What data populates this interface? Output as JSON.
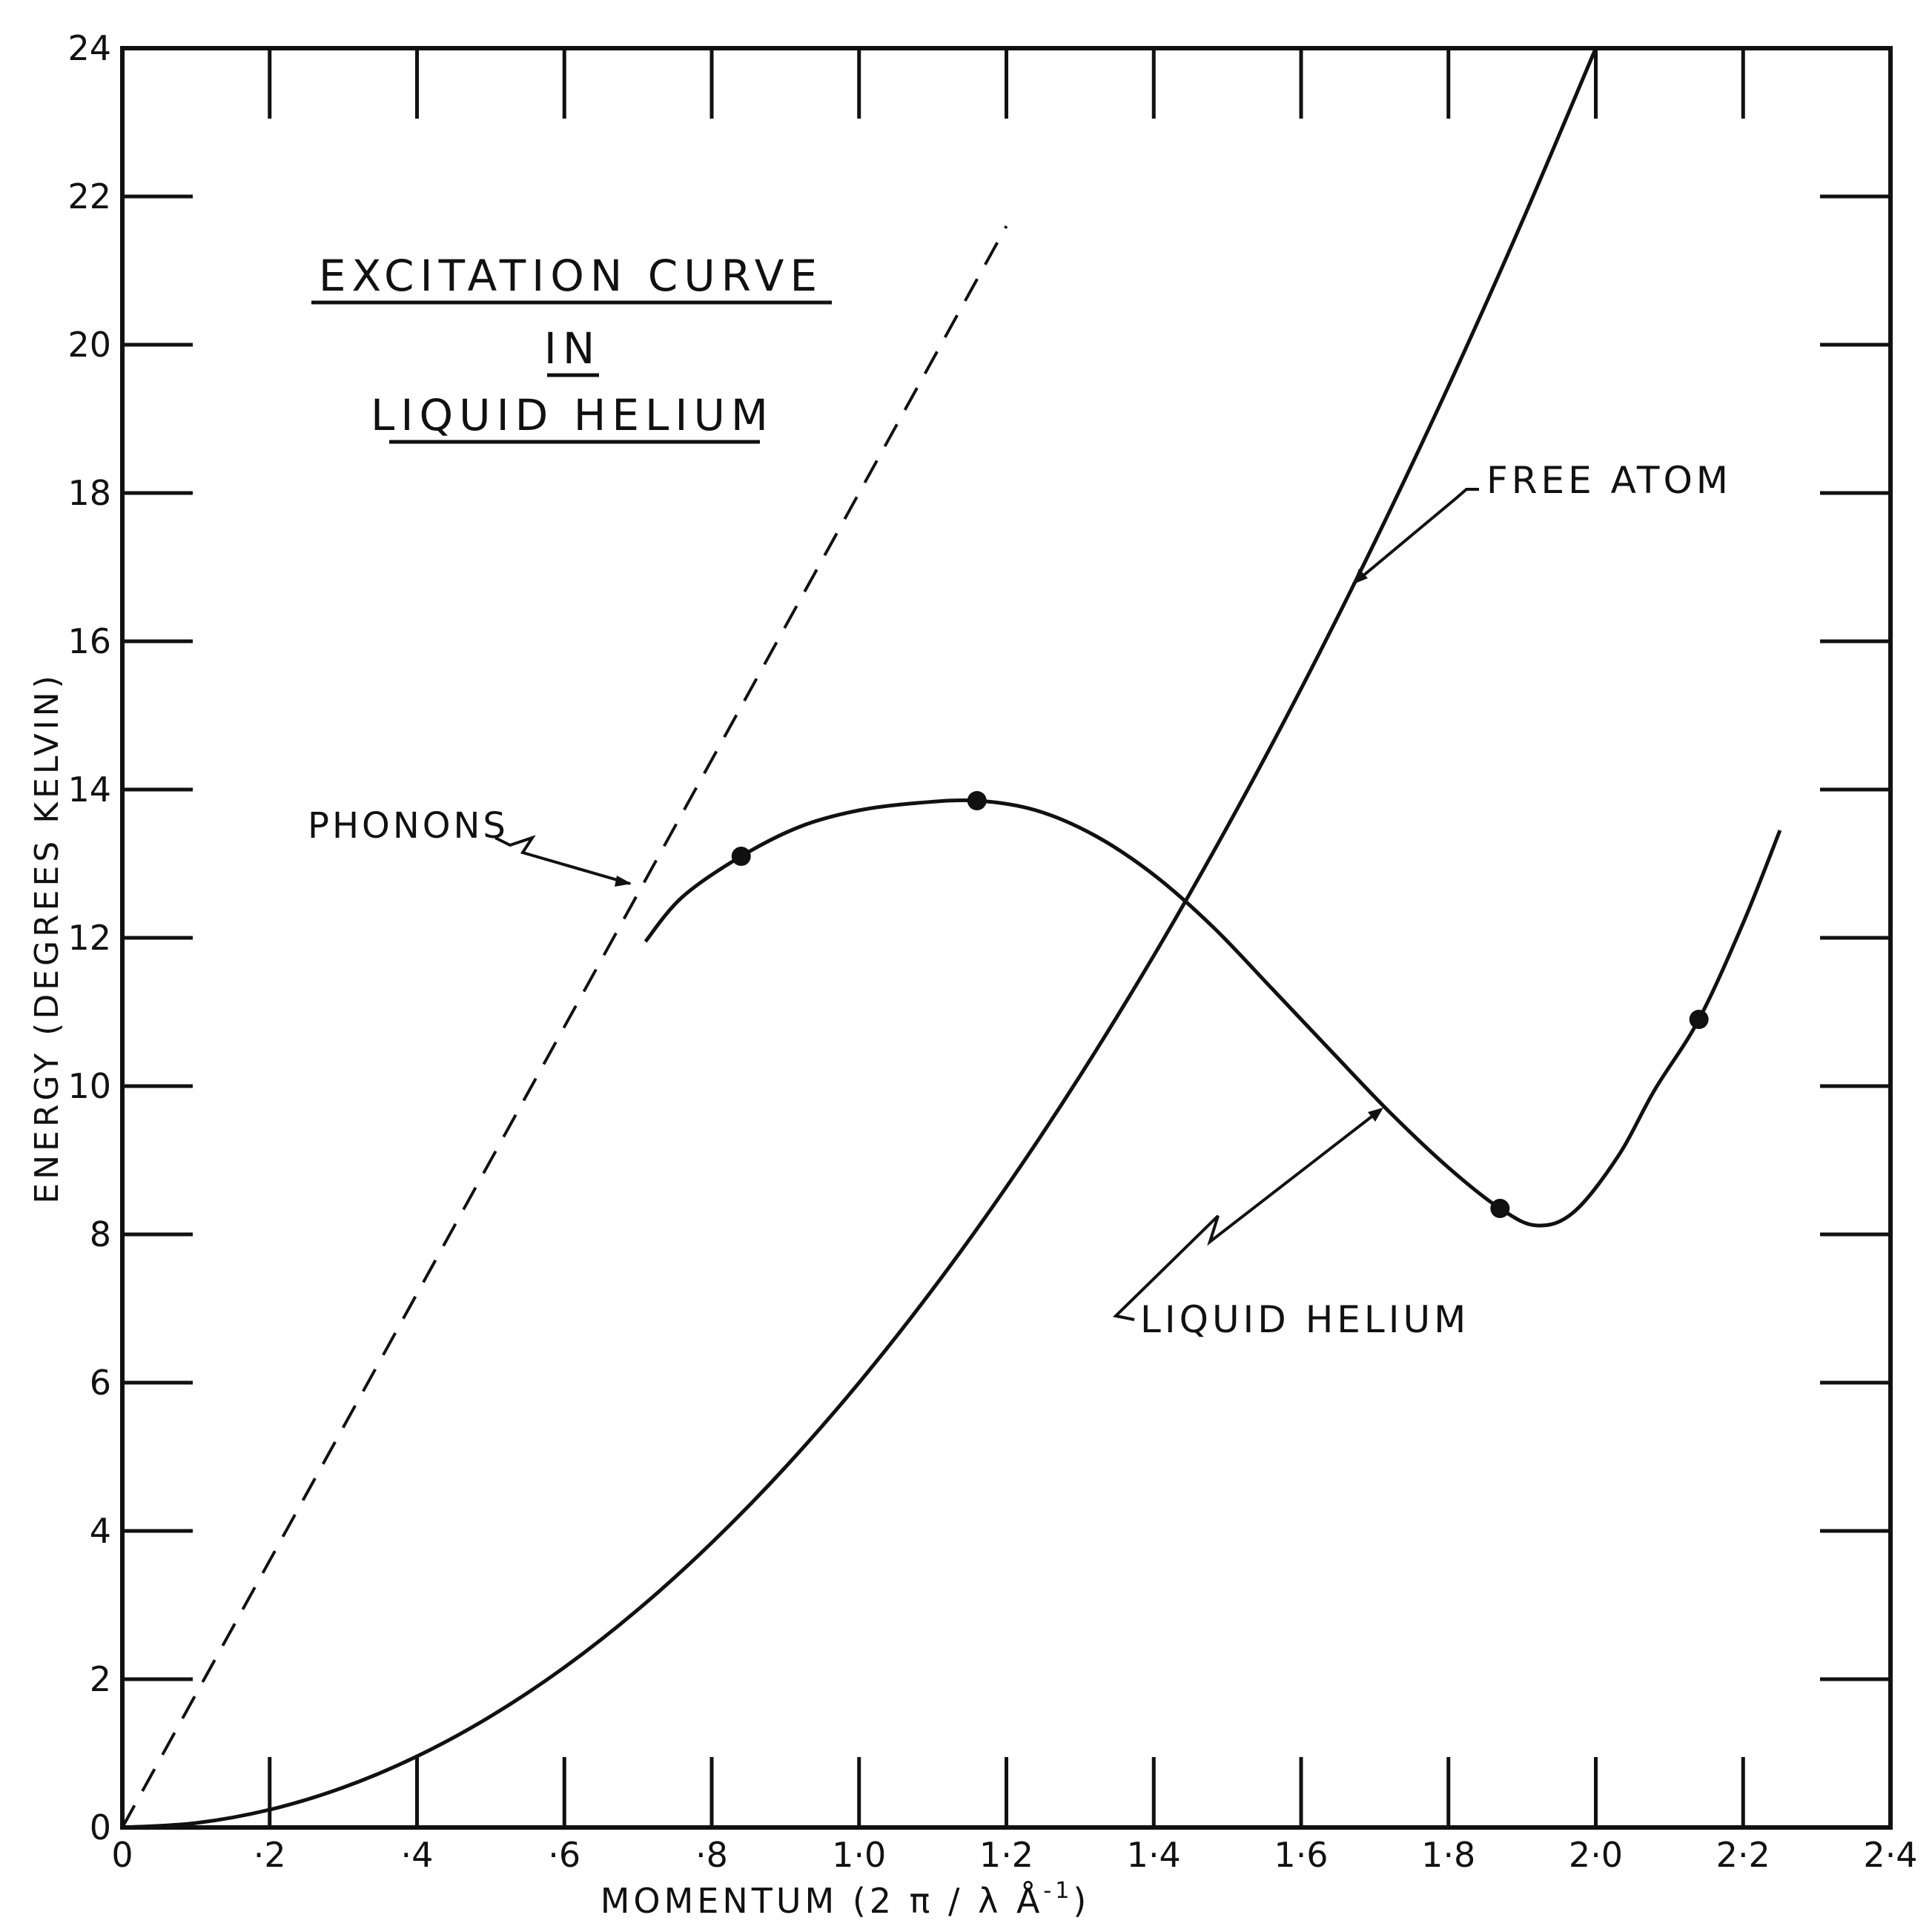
{
  "chart_data": {
    "type": "line",
    "title_lines": [
      "EXCITATION CURVE",
      "IN",
      "LIQUID HELIUM"
    ],
    "xlabel": "MOMENTUM  (2 π / λ Å",
    "xlabel_sup": "-1",
    "xlabel_close": ")",
    "ylabel": "ENERGY (DEGREES KELVIN)",
    "xlim": [
      0,
      2.4
    ],
    "ylim": [
      0,
      24
    ],
    "x_ticks": [
      0,
      0.2,
      0.4,
      0.6,
      0.8,
      1.0,
      1.2,
      1.4,
      1.6,
      1.8,
      2.0,
      2.2,
      2.4
    ],
    "x_tick_labels": [
      "0",
      "·2",
      "·4",
      "·6",
      "·8",
      "1·0",
      "1·2",
      "1·4",
      "1·6",
      "1·8",
      "2·0",
      "2·2",
      "2·4"
    ],
    "y_ticks": [
      0,
      2,
      4,
      6,
      8,
      10,
      12,
      14,
      16,
      18,
      20,
      22,
      24
    ],
    "y_tick_labels": [
      "0",
      "2",
      "4",
      "6",
      "8",
      "10",
      "12",
      "14",
      "16",
      "18",
      "20",
      "22",
      "24"
    ],
    "grid": false,
    "annotations": [
      {
        "text": "FREE ATOM",
        "target": "free-atom-curve"
      },
      {
        "text": "PHONONS",
        "target": "phonon-line"
      },
      {
        "text": "LIQUID HELIUM",
        "target": "liquid-helium-curve"
      }
    ],
    "series": [
      {
        "key": "free_atom",
        "style": "solid",
        "x": [
          0,
          0.1,
          0.2,
          0.3,
          0.4,
          0.5,
          0.6,
          0.7,
          0.8,
          0.9,
          1.0,
          1.1,
          1.2,
          1.3,
          1.4,
          1.5,
          1.6,
          1.7,
          1.8,
          1.9,
          2.0
        ],
        "y": [
          0,
          0.06,
          0.24,
          0.54,
          0.96,
          1.5,
          2.16,
          2.94,
          3.84,
          4.86,
          6.0,
          7.26,
          8.64,
          10.14,
          11.76,
          13.5,
          15.36,
          17.34,
          19.44,
          21.66,
          24.0
        ]
      },
      {
        "key": "phonons",
        "style": "dashed",
        "x": [
          0,
          1.2
        ],
        "y": [
          0,
          21.6
        ]
      },
      {
        "key": "liquid_helium",
        "style": "solid",
        "x": [
          0.71,
          0.76,
          0.84,
          0.92,
          1.0,
          1.08,
          1.16,
          1.24,
          1.32,
          1.4,
          1.48,
          1.56,
          1.64,
          1.72,
          1.8,
          1.87,
          1.92,
          1.97,
          2.03,
          2.08,
          2.14,
          2.2,
          2.25
        ],
        "y": [
          11.95,
          12.55,
          13.1,
          13.5,
          13.72,
          13.82,
          13.85,
          13.72,
          13.38,
          12.85,
          12.15,
          11.32,
          10.48,
          9.65,
          8.9,
          8.35,
          8.12,
          8.3,
          9.05,
          9.95,
          10.9,
          12.2,
          13.45
        ]
      }
    ],
    "points": {
      "x": [
        0.84,
        1.16,
        1.87,
        2.14
      ],
      "y": [
        13.1,
        13.85,
        8.35,
        10.9
      ]
    }
  }
}
